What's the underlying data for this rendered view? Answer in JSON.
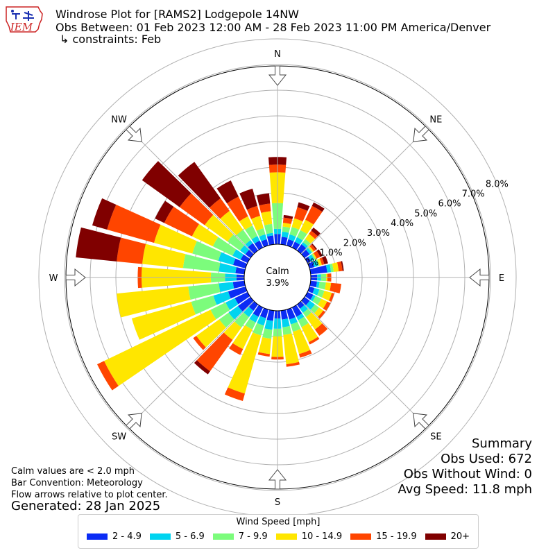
{
  "logo_text": "IEM",
  "title": {
    "line1": "Windrose Plot for [RAMS2] Lodgepole 14NW",
    "line2": "Obs Between: 01 Feb 2023 12:00 AM - 28 Feb 2023 11:00 PM America/Denver",
    "line3": "↳ constraints: Feb"
  },
  "notes": {
    "calm_note": "Calm values are < 2.0 mph",
    "bar_convention": "Bar Convention: Meteorology",
    "flow_note": "Flow arrows relative to plot center.",
    "generated": "Generated: 28 Jan 2025"
  },
  "summary": {
    "heading": "Summary",
    "obs_used": "Obs Used: 672",
    "obs_without_wind": "Obs Without Wind: 0",
    "avg_speed": "Avg Speed: 11.8 mph"
  },
  "legend": {
    "title": "Wind Speed [mph]",
    "items": [
      {
        "label": "2 - 4.9",
        "color": "#0b2cf5"
      },
      {
        "label": "5 - 6.9",
        "color": "#00d4f0"
      },
      {
        "label": "7 - 9.9",
        "color": "#7cfc7c"
      },
      {
        "label": "10 - 14.9",
        "color": "#ffe600"
      },
      {
        "label": "15 - 19.9",
        "color": "#ff4500"
      },
      {
        "label": "20+",
        "color": "#800000"
      }
    ]
  },
  "chart_data": {
    "type": "windrose",
    "calm": {
      "label": "Calm",
      "value": "3.9%"
    },
    "radial_ticks": [
      "0.0%",
      "1.0%",
      "2.0%",
      "3.0%",
      "4.0%",
      "5.0%",
      "6.0%",
      "7.0%",
      "8.0%"
    ],
    "radial_max_percent": 8.0,
    "directions_degrees": [
      0,
      10,
      20,
      30,
      40,
      50,
      60,
      70,
      80,
      90,
      100,
      110,
      120,
      130,
      140,
      150,
      160,
      170,
      180,
      190,
      200,
      210,
      220,
      230,
      240,
      250,
      260,
      270,
      280,
      290,
      300,
      310,
      320,
      330,
      340,
      350
    ],
    "compass_labels": [
      {
        "label": "N",
        "deg": 0
      },
      {
        "label": "NE",
        "deg": 45
      },
      {
        "label": "E",
        "deg": 90
      },
      {
        "label": "SE",
        "deg": 135
      },
      {
        "label": "S",
        "deg": 180
      },
      {
        "label": "SW",
        "deg": 225
      },
      {
        "label": "W",
        "deg": 270
      },
      {
        "label": "NW",
        "deg": 315
      }
    ],
    "bins": [
      "2 - 4.9",
      "5 - 6.9",
      "7 - 9.9",
      "10 - 14.9",
      "15 - 19.9",
      "20+"
    ],
    "cumulative_percent": [
      [
        0.4,
        0.6,
        1.6,
        2.8,
        3.1,
        3.4
      ],
      [
        0.3,
        0.5,
        0.7,
        0.85,
        1.05,
        1.15
      ],
      [
        0.25,
        0.45,
        0.75,
        1.1,
        1.55,
        1.75
      ],
      [
        0.25,
        0.45,
        0.75,
        1.2,
        1.8,
        1.95
      ],
      [
        0.3,
        0.4,
        0.55,
        0.8,
        0.95,
        1.1
      ],
      [
        0.25,
        0.35,
        0.4,
        0.45,
        0.55,
        0.6
      ],
      [
        0.15,
        0.3,
        0.35,
        0.4,
        0.55,
        0.65
      ],
      [
        0.2,
        0.35,
        0.4,
        0.5,
        0.6,
        0.75
      ],
      [
        0.65,
        0.8,
        0.9,
        1.1,
        1.25,
        1.3
      ],
      [
        0.25,
        0.4,
        0.6,
        0.65,
        0.8,
        0.8
      ],
      [
        0.25,
        0.35,
        0.6,
        0.8,
        1.2,
        1.2
      ],
      [
        0.2,
        0.4,
        0.6,
        0.9,
        1.0,
        1.0
      ],
      [
        0.25,
        0.35,
        0.6,
        0.85,
        1.0,
        1.0
      ],
      [
        0.25,
        0.5,
        0.7,
        0.9,
        1.0,
        1.0
      ],
      [
        0.2,
        0.4,
        0.6,
        1.2,
        1.5,
        1.5
      ],
      [
        0.4,
        0.55,
        0.85,
        1.5,
        1.6,
        1.6
      ],
      [
        0.4,
        0.6,
        0.9,
        1.8,
        1.95,
        1.95
      ],
      [
        0.35,
        0.65,
        0.95,
        2.1,
        2.2,
        2.2
      ],
      [
        0.3,
        0.7,
        1.0,
        1.8,
        1.9,
        1.9
      ],
      [
        0.4,
        0.75,
        1.1,
        1.7,
        1.8,
        1.8
      ],
      [
        0.35,
        0.65,
        1.05,
        3.4,
        3.7,
        3.7
      ],
      [
        0.4,
        0.65,
        0.95,
        1.8,
        2.05,
        2.05
      ],
      [
        0.3,
        0.6,
        1.1,
        1.7,
        3.2,
        3.35
      ],
      [
        0.6,
        1.05,
        1.5,
        2.6,
        2.75,
        2.75
      ],
      [
        0.55,
        0.95,
        1.6,
        6.2,
        6.5,
        6.5
      ],
      [
        0.7,
        1.3,
        2.2,
        4.6,
        4.6,
        4.6
      ],
      [
        0.45,
        1.0,
        2.2,
        5.0,
        5.0,
        5.0
      ],
      [
        0.3,
        0.75,
        1.3,
        4.0,
        4.15,
        4.15
      ],
      [
        0.35,
        1.0,
        2.4,
        4.0,
        5.0,
        6.6
      ],
      [
        0.5,
        1.1,
        2.15,
        3.7,
        5.6,
        6.2
      ],
      [
        0.3,
        0.65,
        1.5,
        2.4,
        3.6,
        4.0
      ],
      [
        0.25,
        0.5,
        1.1,
        2.2,
        3.4,
        5.2
      ],
      [
        0.35,
        0.5,
        1.0,
        1.9,
        2.5,
        4.25
      ],
      [
        0.3,
        0.5,
        0.95,
        1.35,
        2.2,
        2.9
      ],
      [
        0.25,
        0.45,
        0.7,
        1.2,
        1.6,
        2.3
      ],
      [
        0.35,
        0.45,
        0.8,
        1.3,
        1.6,
        2.0
      ]
    ]
  }
}
